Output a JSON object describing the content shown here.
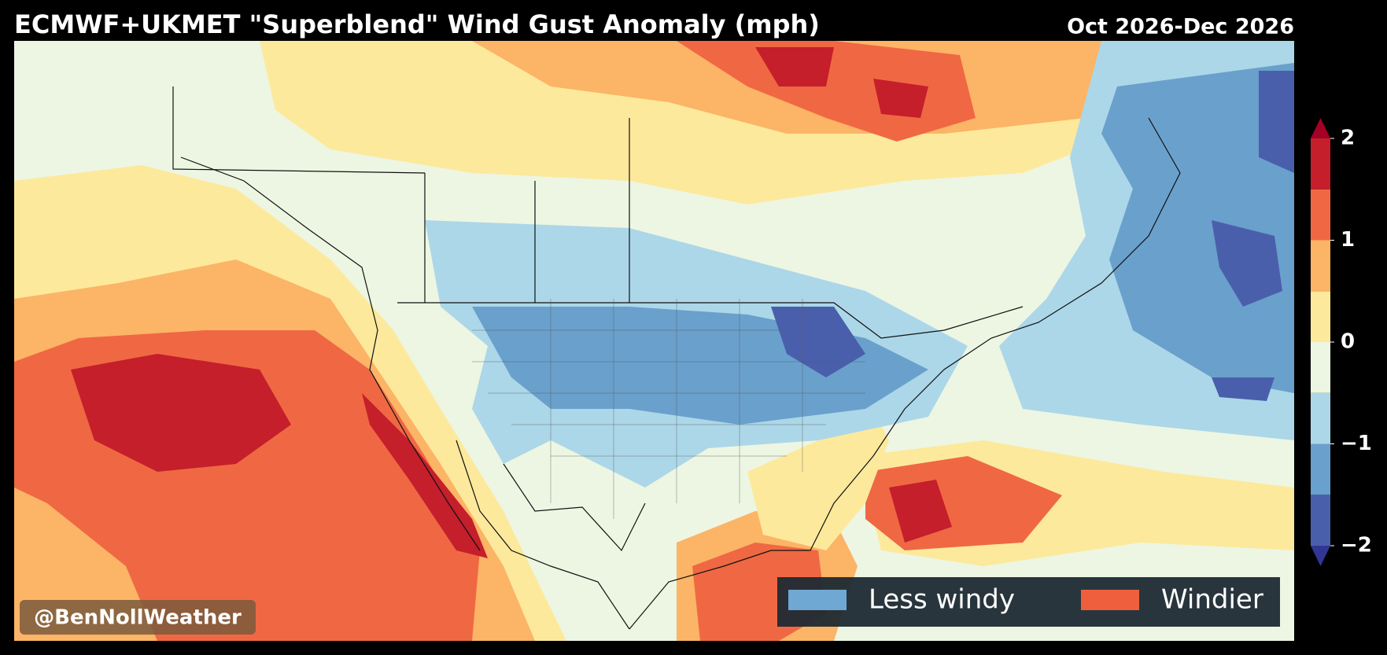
{
  "header": {
    "title": "ECMWF+UKMET \"Superblend\" Wind Gust Anomaly (mph)",
    "date_range": "Oct 2026-Dec 2026"
  },
  "colorbar": {
    "levels": [
      -2,
      -1.5,
      -1,
      -0.5,
      0,
      0.5,
      1,
      1.5,
      2
    ],
    "colors": [
      "#4a5fab",
      "#6aa0cc",
      "#acd7e8",
      "#edf6e3",
      "#fde99c",
      "#fcb466",
      "#ef6843",
      "#c41f2b"
    ],
    "extend_colors": {
      "max": "#a50026",
      "min": "#313695"
    },
    "ticks": [
      2,
      1,
      0,
      {
        "value": -1,
        "label": "−1"
      },
      {
        "value": -2,
        "label": "−2"
      }
    ]
  },
  "legend": {
    "items": [
      {
        "label": "Less windy",
        "color": "#6fa8d3"
      },
      {
        "label": "Windier",
        "color": "#ef5f3e"
      }
    ]
  },
  "watermark": "@BenNollWeather"
}
